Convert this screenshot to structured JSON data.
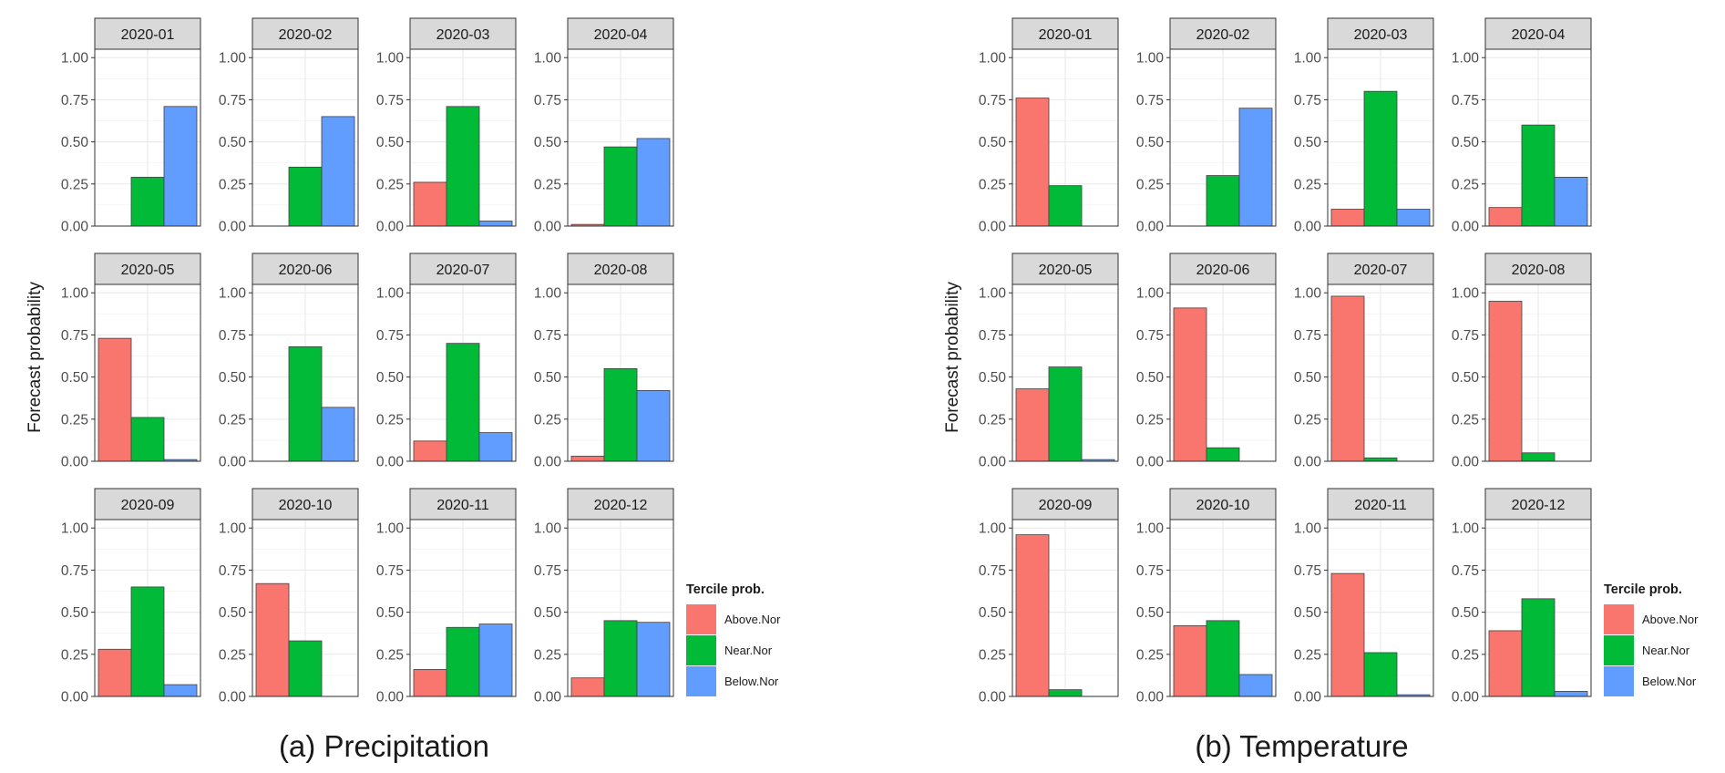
{
  "colors": {
    "above": "#F8766D",
    "near": "#00BA38",
    "below": "#619CFF",
    "strip_fill": "#D9D9D9",
    "grid": "#EBEBEB",
    "border": "#333333",
    "tick_text": "#4D4D4D"
  },
  "chart_data": [
    {
      "type": "bar",
      "title": "(a) Precipitation",
      "ylabel": "Forecast probability",
      "xlabel": "",
      "ylim": [
        0,
        1.05
      ],
      "yticks": [
        "0.00",
        "0.25",
        "0.50",
        "0.75",
        "1.00"
      ],
      "grid": true,
      "legend": {
        "placement": "right",
        "title": "Tercile prob.",
        "entries": [
          "Above.Nor",
          "Near.Nor",
          "Below.Nor"
        ]
      },
      "categories": [
        "Above.Nor",
        "Near.Nor",
        "Below.Nor"
      ],
      "panels": [
        {
          "label": "2020-01",
          "values": [
            0.0,
            0.29,
            0.71
          ]
        },
        {
          "label": "2020-02",
          "values": [
            0.0,
            0.35,
            0.65
          ]
        },
        {
          "label": "2020-03",
          "values": [
            0.26,
            0.71,
            0.03
          ]
        },
        {
          "label": "2020-04",
          "values": [
            0.01,
            0.47,
            0.52
          ]
        },
        {
          "label": "2020-05",
          "values": [
            0.73,
            0.26,
            0.01
          ]
        },
        {
          "label": "2020-06",
          "values": [
            0.0,
            0.68,
            0.32
          ]
        },
        {
          "label": "2020-07",
          "values": [
            0.12,
            0.7,
            0.17
          ]
        },
        {
          "label": "2020-08",
          "values": [
            0.03,
            0.55,
            0.42
          ]
        },
        {
          "label": "2020-09",
          "values": [
            0.28,
            0.65,
            0.07
          ]
        },
        {
          "label": "2020-10",
          "values": [
            0.67,
            0.33,
            0.0
          ]
        },
        {
          "label": "2020-11",
          "values": [
            0.16,
            0.41,
            0.43
          ]
        },
        {
          "label": "2020-12",
          "values": [
            0.11,
            0.45,
            0.44
          ]
        }
      ]
    },
    {
      "type": "bar",
      "title": "(b) Temperature",
      "ylabel": "Forecast probability",
      "xlabel": "",
      "ylim": [
        0,
        1.05
      ],
      "yticks": [
        "0.00",
        "0.25",
        "0.50",
        "0.75",
        "1.00"
      ],
      "grid": true,
      "legend": {
        "placement": "right",
        "title": "Tercile prob.",
        "entries": [
          "Above.Nor",
          "Near.Nor",
          "Below.Nor"
        ]
      },
      "categories": [
        "Above.Nor",
        "Near.Nor",
        "Below.Nor"
      ],
      "panels": [
        {
          "label": "2020-01",
          "values": [
            0.76,
            0.24,
            0.0
          ]
        },
        {
          "label": "2020-02",
          "values": [
            0.0,
            0.3,
            0.7
          ]
        },
        {
          "label": "2020-03",
          "values": [
            0.1,
            0.8,
            0.1
          ]
        },
        {
          "label": "2020-04",
          "values": [
            0.11,
            0.6,
            0.29
          ]
        },
        {
          "label": "2020-05",
          "values": [
            0.43,
            0.56,
            0.01
          ]
        },
        {
          "label": "2020-06",
          "values": [
            0.91,
            0.08,
            0.0
          ]
        },
        {
          "label": "2020-07",
          "values": [
            0.98,
            0.02,
            0.0
          ]
        },
        {
          "label": "2020-08",
          "values": [
            0.95,
            0.05,
            0.0
          ]
        },
        {
          "label": "2020-09",
          "values": [
            0.96,
            0.04,
            0.0
          ]
        },
        {
          "label": "2020-10",
          "values": [
            0.42,
            0.45,
            0.13
          ]
        },
        {
          "label": "2020-11",
          "values": [
            0.73,
            0.26,
            0.01
          ]
        },
        {
          "label": "2020-12",
          "values": [
            0.39,
            0.58,
            0.03
          ]
        }
      ]
    }
  ]
}
